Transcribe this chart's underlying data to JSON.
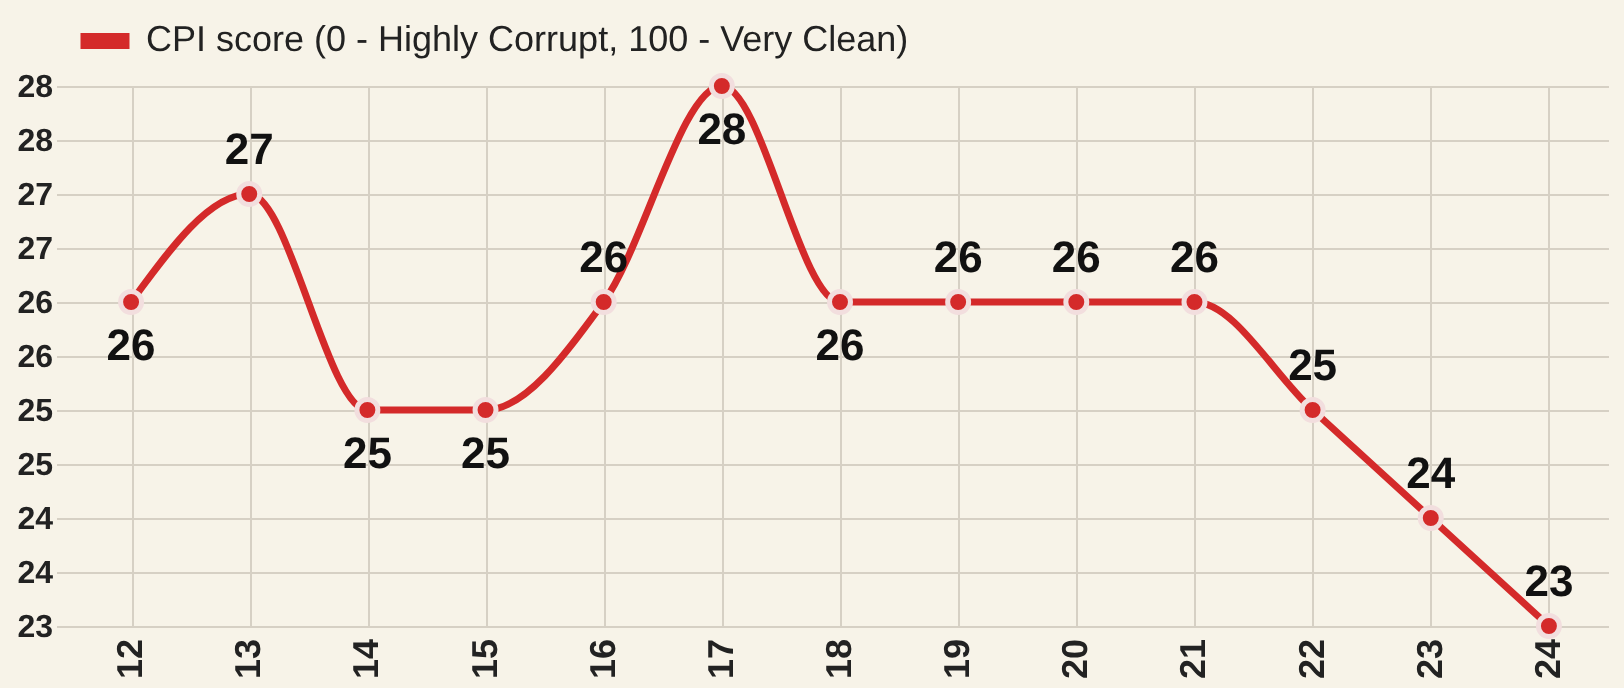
{
  "chart_data": {
    "type": "line",
    "categories": [
      "12",
      "13",
      "14",
      "15",
      "16",
      "17",
      "18",
      "19",
      "20",
      "21",
      "22",
      "23",
      "24"
    ],
    "series": [
      {
        "name": "CPI score (0 - Highly Corrupt, 100 - Very Clean)",
        "color": "#d42a2a",
        "values": [
          26,
          27,
          25,
          25,
          26,
          28,
          26,
          26,
          26,
          26,
          25,
          24,
          23
        ]
      }
    ],
    "ylim": [
      23,
      28
    ],
    "yticks": [
      23,
      {
        "value": 23.5,
        "label": "24"
      },
      24,
      {
        "value": 24.5,
        "label": "25"
      },
      25,
      {
        "value": 25.5,
        "label": "26"
      },
      26,
      {
        "value": 26.5,
        "label": "27"
      },
      27,
      {
        "value": 27.5,
        "label": "28"
      },
      28
    ],
    "grid": true,
    "legend": "top left",
    "marker": "circle",
    "data_labels": true
  }
}
